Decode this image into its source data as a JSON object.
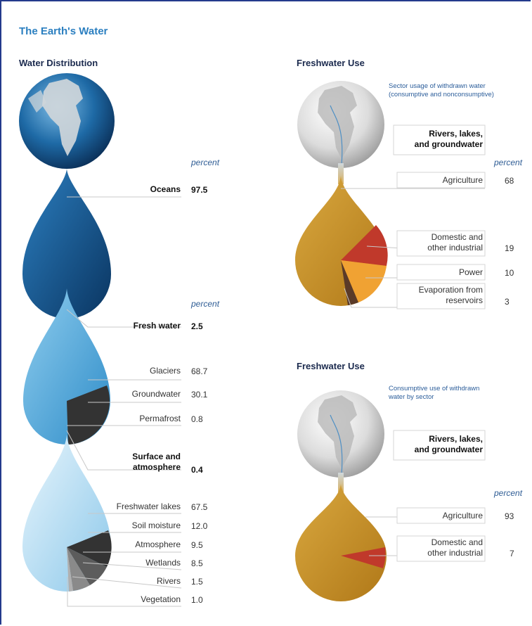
{
  "title": "The Earth's Water",
  "distribution": {
    "heading": "Water Distribution",
    "percent_label": "percent",
    "oceans": {
      "label": "Oceans",
      "value": "97.5"
    },
    "fresh": {
      "label": "Fresh water",
      "value": "2.5"
    },
    "fresh_breakdown": [
      {
        "label": "Glaciers",
        "value": "68.7"
      },
      {
        "label": "Groundwater",
        "value": "30.1"
      },
      {
        "label": "Permafrost",
        "value": "0.8"
      }
    ],
    "surface": {
      "label_line1": "Surface and",
      "label_line2": "atmosphere",
      "value": "0.4"
    },
    "surface_breakdown": [
      {
        "label": "Freshwater lakes",
        "value": "67.5"
      },
      {
        "label": "Soil moisture",
        "value": "12.0"
      },
      {
        "label": "Atmosphere",
        "value": "9.5"
      },
      {
        "label": "Wetlands",
        "value": "8.5"
      },
      {
        "label": "Rivers",
        "value": "1.5"
      },
      {
        "label": "Vegetation",
        "value": "1.0"
      }
    ]
  },
  "use_sector": {
    "heading": "Freshwater Use",
    "caption_line1": "Sector usage of withdrawn water",
    "caption_line2": "(consumptive and nonconsumptive)",
    "source_line1": "Rivers, lakes,",
    "source_line2": "and groundwater",
    "percent_label": "percent",
    "items": [
      {
        "label_line1": "Agriculture",
        "label_line2": "",
        "value": "68"
      },
      {
        "label_line1": "Domestic and",
        "label_line2": "other industrial",
        "value": "19"
      },
      {
        "label_line1": "Power",
        "label_line2": "",
        "value": "10"
      },
      {
        "label_line1": "Evaporation from",
        "label_line2": "reservoirs",
        "value": "3"
      }
    ]
  },
  "use_consumptive": {
    "heading": "Freshwater Use",
    "caption_line1": "Consumptive use of withdrawn",
    "caption_line2": "water by sector",
    "source_line1": "Rivers, lakes,",
    "source_line2": "and groundwater",
    "percent_label": "percent",
    "items": [
      {
        "label_line1": "Agriculture",
        "label_line2": "",
        "value": "93"
      },
      {
        "label_line1": "Domestic and",
        "label_line2": "other industrial",
        "value": "7"
      }
    ]
  },
  "colors": {
    "ocean_dark": "#0d3f6e",
    "fresh_blue": "#3f9fd4",
    "surface_light": "#a9d7f0",
    "dark_slice": "#333333",
    "agriculture": "#c8912b",
    "industrial": "#c0392b",
    "power": "#f0a233",
    "evaporation": "#5a3a28"
  }
}
